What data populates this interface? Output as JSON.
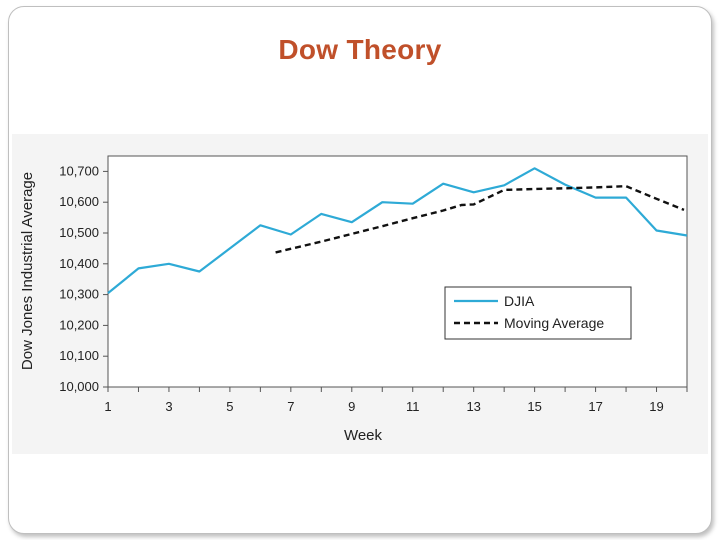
{
  "slide": {
    "title": "Dow Theory"
  },
  "chart_data": {
    "type": "line",
    "xlabel": "Week",
    "ylabel": "Dow Jones Industrial Average",
    "xlim": [
      1,
      20
    ],
    "ylim": [
      10000,
      10750
    ],
    "x_ticks": [
      1,
      3,
      5,
      7,
      9,
      11,
      13,
      15,
      17,
      19
    ],
    "x_tick_labels": [
      "1",
      "3",
      "5",
      "7",
      "9",
      "11",
      "13",
      "15",
      "17",
      "19"
    ],
    "y_ticks": [
      10000,
      10100,
      10200,
      10300,
      10400,
      10500,
      10600,
      10700
    ],
    "y_tick_labels": [
      "10,000",
      "10,100",
      "10,200",
      "10,300",
      "10,400",
      "10,500",
      "10,600",
      "10,700"
    ],
    "grid": false,
    "legend_position": "lower-right",
    "series": [
      {
        "name": "DJIA",
        "color": "#2eaad6",
        "style": "solid",
        "x": [
          1,
          2,
          3,
          4,
          5,
          6,
          7,
          8,
          9,
          10,
          11,
          12,
          13,
          14,
          15,
          16,
          17,
          18,
          19,
          20
        ],
        "y": [
          10305,
          10385,
          10400,
          10375,
          10450,
          10525,
          10495,
          10562,
          10535,
          10600,
          10595,
          10660,
          10632,
          10655,
          10710,
          10657,
          10615,
          10615,
          10508,
          10492
        ]
      },
      {
        "name": "Moving Average",
        "color": "#111111",
        "style": "dashed",
        "x": [
          6.5,
          8,
          9,
          10,
          11,
          12,
          12.6,
          13,
          14,
          15,
          16,
          17,
          18,
          19,
          19.9
        ],
        "y": [
          10437,
          10472,
          10497,
          10522,
          10548,
          10573,
          10591,
          10593,
          10640,
          10643,
          10645,
          10648,
          10652,
          10611,
          10575
        ]
      }
    ]
  }
}
